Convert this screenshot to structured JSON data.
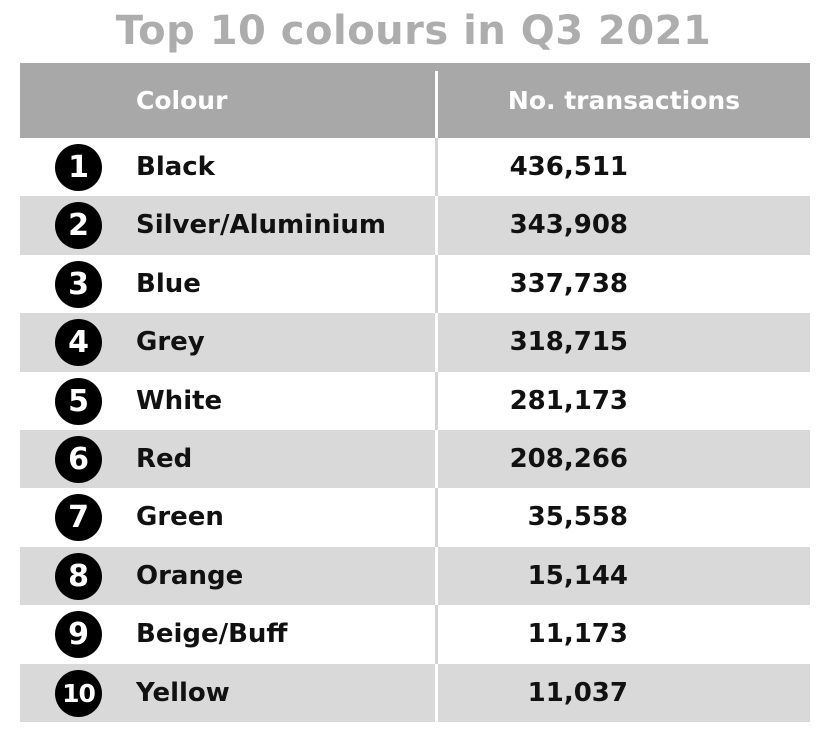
{
  "chart_data": {
    "type": "table",
    "title": "Top 10 colours in Q3 2021",
    "columns": [
      "Colour",
      "No. transactions"
    ],
    "rows": [
      {
        "rank": "1",
        "colour": "Black",
        "transactions": "436,511"
      },
      {
        "rank": "2",
        "colour": "Silver/Aluminium",
        "transactions": "343,908"
      },
      {
        "rank": "3",
        "colour": "Blue",
        "transactions": "337,738"
      },
      {
        "rank": "4",
        "colour": "Grey",
        "transactions": "318,715"
      },
      {
        "rank": "5",
        "colour": "White",
        "transactions": "281,173"
      },
      {
        "rank": "6",
        "colour": "Red",
        "transactions": "208,266"
      },
      {
        "rank": "7",
        "colour": "Green",
        "transactions": "35,558"
      },
      {
        "rank": "8",
        "colour": "Orange",
        "transactions": "15,144"
      },
      {
        "rank": "9",
        "colour": "Beige/Buff",
        "transactions": "11,173"
      },
      {
        "rank": "10",
        "colour": "Yellow",
        "transactions": "11,037"
      }
    ],
    "colors": {
      "title": "#adadad",
      "header_background": "#a8a8a8",
      "header_text": "#ffffff",
      "stripe": "#d9d9d9",
      "rank_badge": "#000000"
    }
  }
}
